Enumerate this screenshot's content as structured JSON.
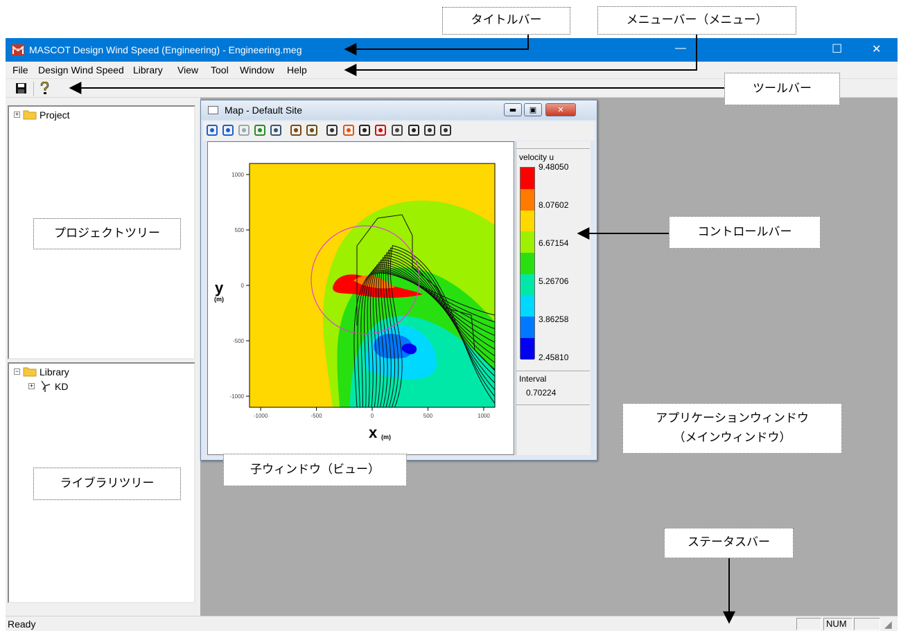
{
  "window": {
    "title": "MASCOT Design Wind Speed (Engineering) - Engineering.meg",
    "minimize_glyph": "—",
    "maximize_glyph": "☐",
    "close_glyph": "✕"
  },
  "menu": [
    "File",
    "Design Wind Speed",
    "Library",
    "View",
    "Tool",
    "Window",
    "Help"
  ],
  "toolbar": {
    "icons": [
      "save-icon",
      "help-icon"
    ]
  },
  "project_tree": {
    "root_label": "Project",
    "expander": "+"
  },
  "library_tree": {
    "root_label": "Library",
    "expander": "−",
    "child_label": "KD",
    "child_expander": "+"
  },
  "child_window": {
    "title": "Map - Default Site",
    "toolbar_icons": [
      "zoom-reset-icon",
      "zoom-in-icon",
      "zoom-out-icon",
      "refresh-icon",
      "fit-icon",
      "copy-image-icon",
      "save-image-icon",
      "arrows-icon",
      "contour-fill-icon",
      "grid-icon",
      "points-icon",
      "terrain-icon",
      "frame-icon",
      "balloon-icon",
      "pencil-icon"
    ]
  },
  "colorbar": {
    "title": "velocity u",
    "labels": [
      "9.48050",
      "8.07602",
      "6.67154",
      "5.26706",
      "3.86258",
      "2.45810"
    ],
    "colors": [
      "#ff0000",
      "#ff7a00",
      "#ffd800",
      "#9cf000",
      "#28e010",
      "#00e8a8",
      "#00d8ff",
      "#0078ff",
      "#0000f0"
    ],
    "interval_label": "Interval",
    "interval_value": "0.70224"
  },
  "chart_data": {
    "type": "heatmap",
    "xlabel": "x",
    "ylabel": "y",
    "unit_label": "(m)",
    "xlim": [
      -1100,
      1100
    ],
    "ylim": [
      -1100,
      1100
    ],
    "xticks": [
      "-1000",
      "-500",
      "0",
      "500",
      "1000"
    ],
    "yticks": [
      "1000",
      "500",
      "0",
      "-500",
      "-1000"
    ]
  },
  "status": {
    "text": "Ready",
    "num": "NUM"
  },
  "callouts": {
    "title_bar": "タイトルバー",
    "menu_bar": "メニューバー（メニュー）",
    "tool_bar": "ツールバー",
    "project_tree": "プロジェクトツリー",
    "control_bar": "コントロールバー",
    "child_window": "子ウィンドウ（ビュー）",
    "library_tree": "ライブラリツリー",
    "app_window_1": "アプリケーションウィンドウ",
    "app_window_2": "（メインウィンドウ）",
    "status_bar": "ステータスバー"
  }
}
